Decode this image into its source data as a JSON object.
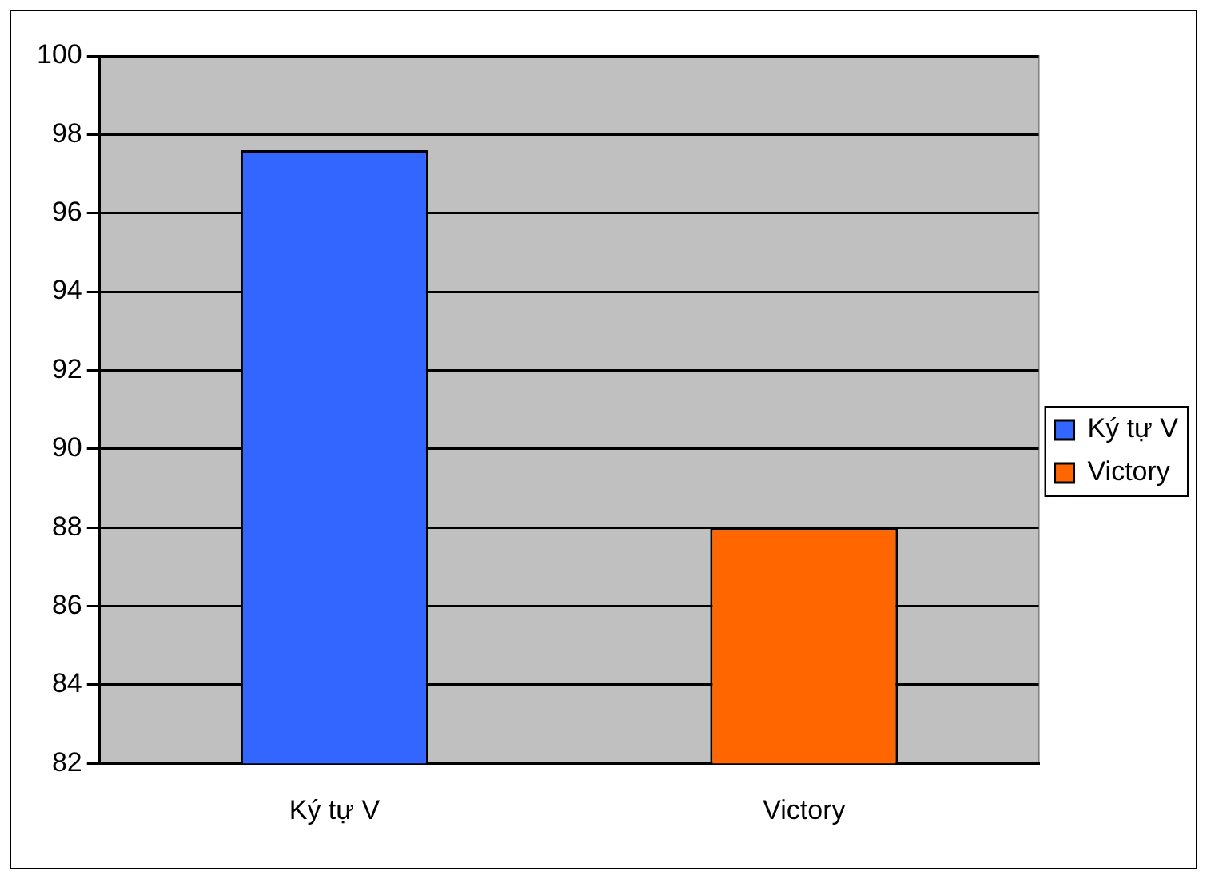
{
  "chart_data": {
    "type": "bar",
    "categories": [
      "Ký tự V",
      "Victory"
    ],
    "series": [
      {
        "name": "Ký tự V",
        "color": "#3366ff",
        "values": [
          97.6,
          null
        ]
      },
      {
        "name": "Victory",
        "color": "#ff6600",
        "values": [
          null,
          88
        ]
      }
    ],
    "ylim": [
      82,
      100
    ],
    "yticks": [
      82,
      84,
      86,
      88,
      90,
      92,
      94,
      96,
      98,
      100
    ],
    "grid": "y",
    "legend": "right"
  }
}
